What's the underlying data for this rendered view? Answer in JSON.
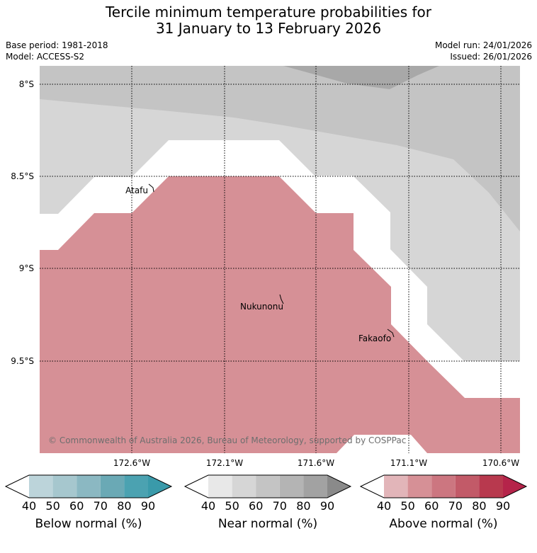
{
  "title": {
    "line1": "Tercile minimum temperature probabilities for",
    "line2": "31 January to 13 February 2026"
  },
  "meta": {
    "base_period": "Base period: 1981-2018",
    "model": "Model: ACCESS-S2",
    "model_run": "Model run: 24/01/2026",
    "issued": "Issued: 26/01/2026"
  },
  "map": {
    "lat_labels": [
      "8°S",
      "8.5°S",
      "9°S",
      "9.5°S"
    ],
    "lon_labels": [
      "172.6°W",
      "172.1°W",
      "171.6°W",
      "171.1°W",
      "170.6°W"
    ],
    "places": [
      "Atafu",
      "Nukunonu",
      "Fakaofo"
    ],
    "copyright": "© Commonwealth of Australia 2026, Bureau of Meteorology, supported by COSPPac",
    "colors": {
      "near_40": "#d6d6d6",
      "near_50": "#c4c4c4",
      "near_60": "#a8a8a8",
      "above_50": "#d69096"
    }
  },
  "legends": [
    {
      "name": "below-normal",
      "label": "Below normal (%)",
      "ticks": [
        "40",
        "50",
        "60",
        "70",
        "80",
        "90"
      ],
      "colors": [
        "#ffffff",
        "#bcd4da",
        "#a6c7ce",
        "#8bb8c2",
        "#6aa9b5",
        "#4ba2b1",
        "#3a9aaa"
      ]
    },
    {
      "name": "near-normal",
      "label": "Near normal (%)",
      "ticks": [
        "40",
        "50",
        "60",
        "70",
        "80",
        "90"
      ],
      "colors": [
        "#ffffff",
        "#e8e8e8",
        "#d6d6d6",
        "#c4c4c4",
        "#b4b4b4",
        "#a2a2a2",
        "#8a8a8a"
      ]
    },
    {
      "name": "above-normal",
      "label": "Above normal (%)",
      "ticks": [
        "40",
        "50",
        "60",
        "70",
        "80",
        "90"
      ],
      "colors": [
        "#ffffff",
        "#e2b5b9",
        "#d69096",
        "#cc7680",
        "#c25a68",
        "#b8394e",
        "#b5244a"
      ]
    }
  ]
}
